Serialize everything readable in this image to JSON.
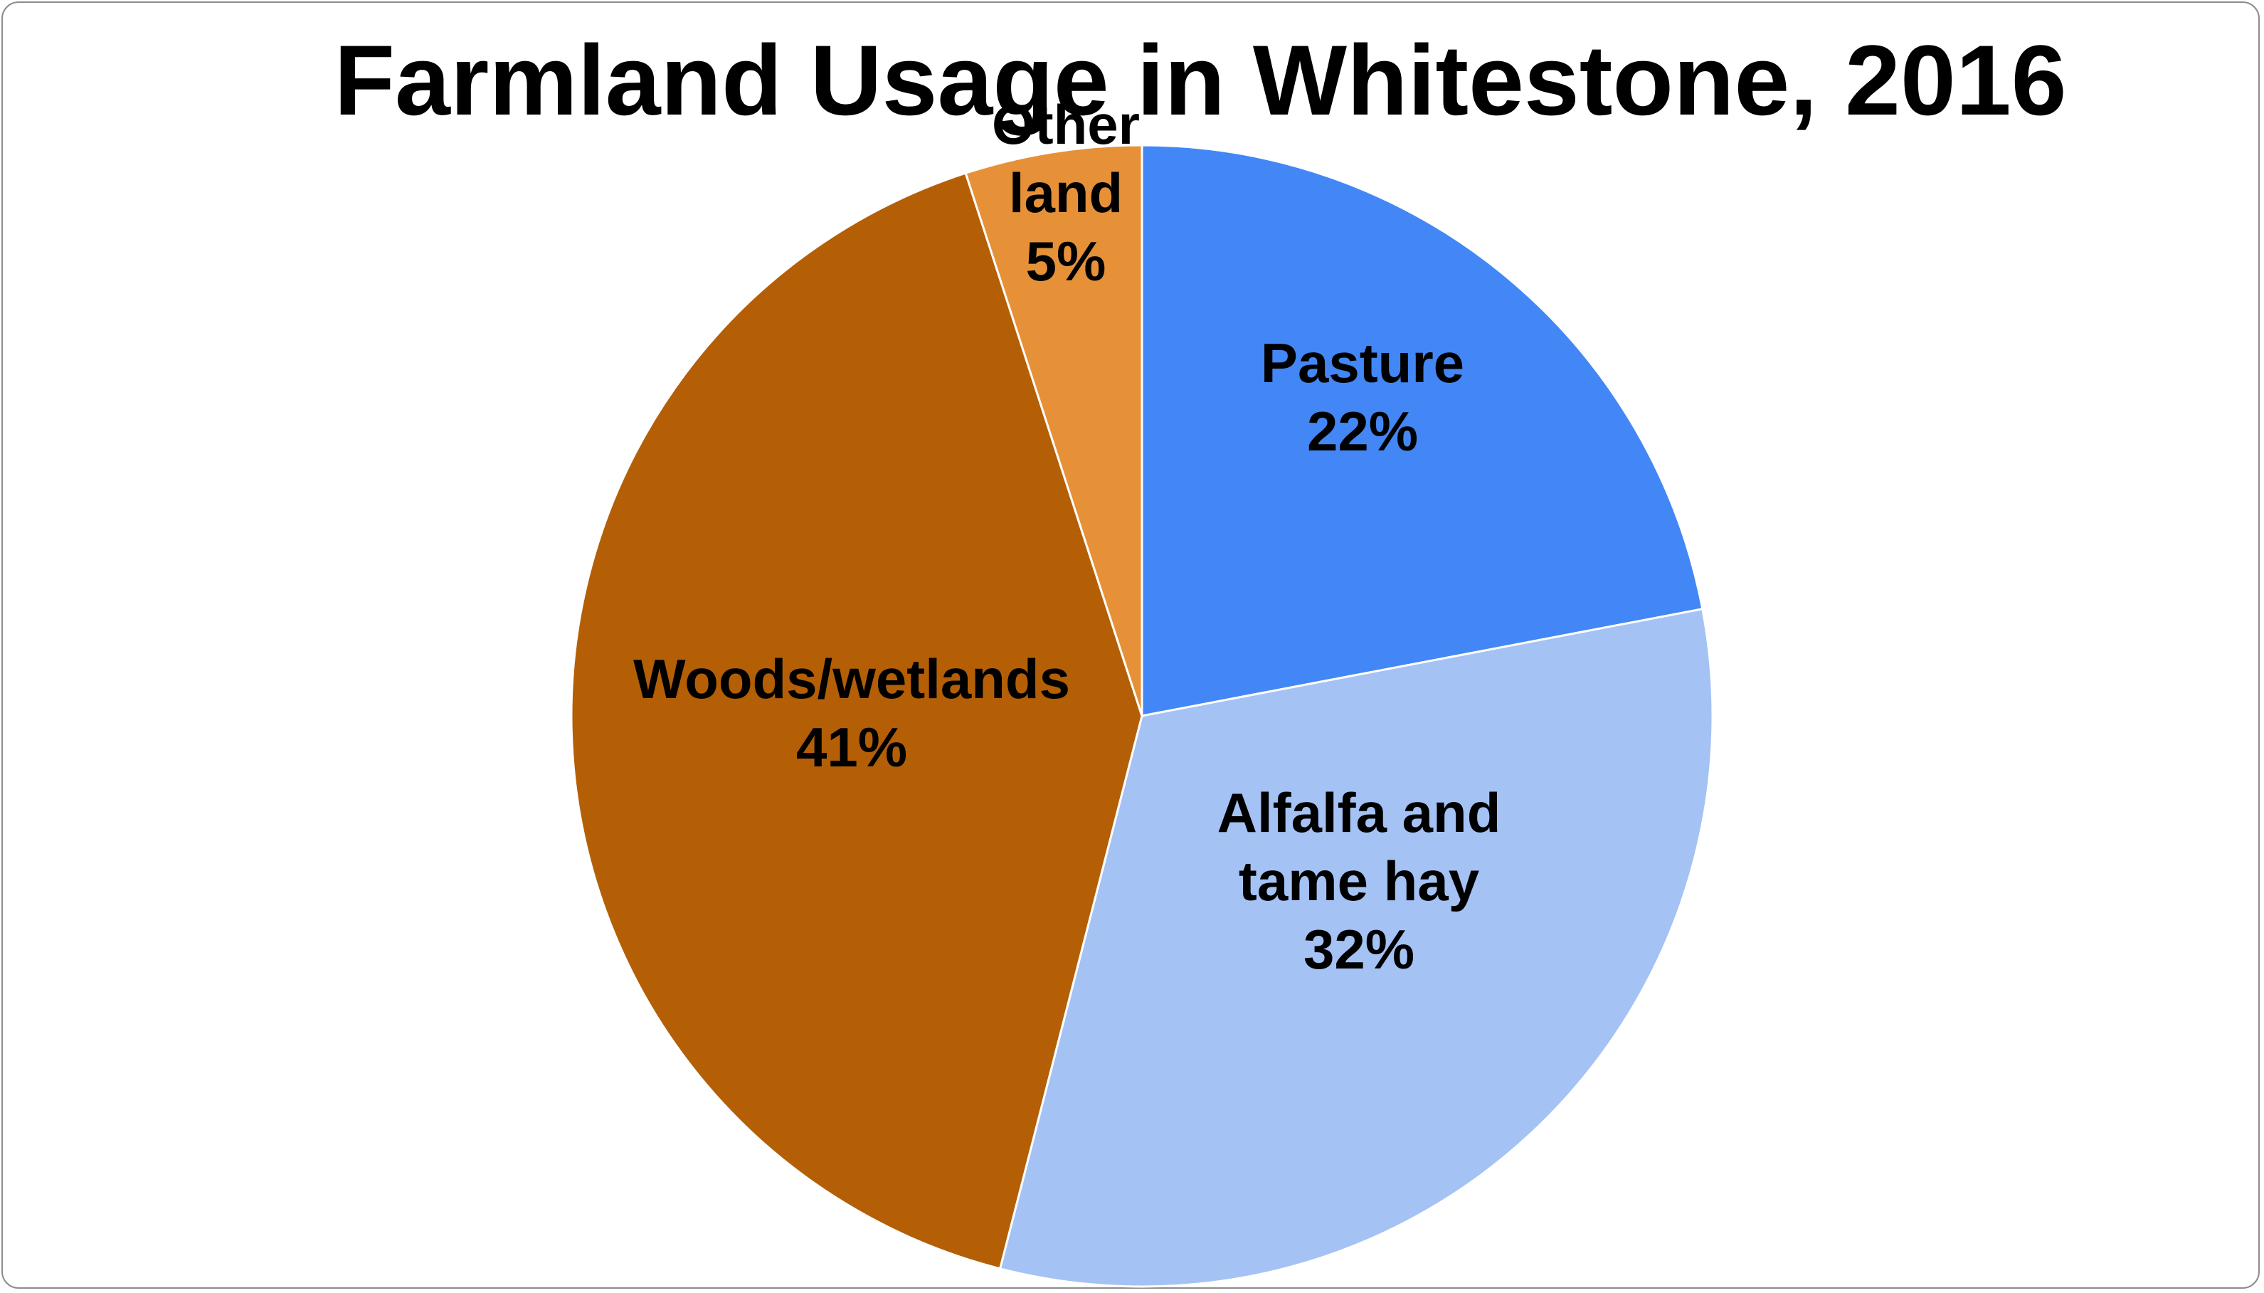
{
  "chart_data": {
    "type": "pie",
    "title": "Farmland Usage in Whitestone, 2016",
    "slices": [
      {
        "label_lines": [
          "Pasture"
        ],
        "value": 22,
        "value_label": "22%",
        "color": "#4287F5"
      },
      {
        "label_lines": [
          "Alfalfa and",
          "tame hay"
        ],
        "value": 32,
        "value_label": "32%",
        "color": "#A4C2F4"
      },
      {
        "label_lines": [
          "Woods/wetlands"
        ],
        "value": 41,
        "value_label": "41%",
        "color": "#B45F06"
      },
      {
        "label_lines": [
          "Other",
          "land"
        ],
        "value": 5,
        "value_label": "5%",
        "color": "#E69138"
      }
    ],
    "start_angle_deg": 0,
    "direction": "clockwise",
    "legend": "none",
    "data_labels": "inside"
  }
}
